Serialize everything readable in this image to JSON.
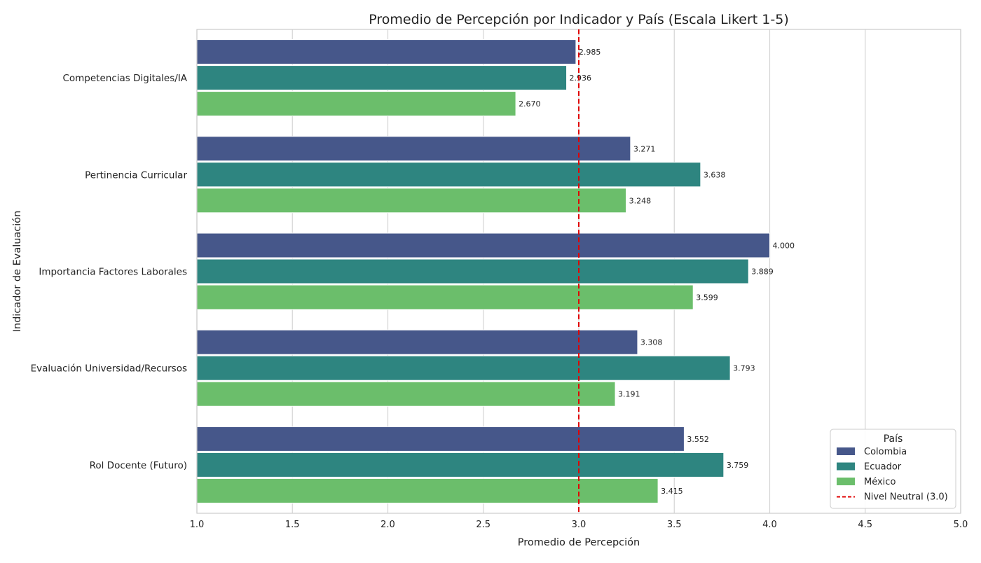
{
  "chart_data": {
    "type": "bar",
    "orientation": "horizontal",
    "title": "Promedio de Percepción por Indicador y País (Escala Likert 1-5)",
    "xlabel": "Promedio de Percepción",
    "ylabel": "Indicador de Evaluación",
    "xlim": [
      1.0,
      5.0
    ],
    "xticks": [
      "1.0",
      "1.5",
      "2.0",
      "2.5",
      "3.0",
      "3.5",
      "4.0",
      "4.5",
      "5.0"
    ],
    "grid": "vertical",
    "categories": [
      "Competencias Digitales/IA",
      "Pertinencia Curricular",
      "Importancia Factores Laborales",
      "Evaluación Universidad/Recursos",
      "Rol Docente (Futuro)"
    ],
    "series": [
      {
        "name": "Colombia",
        "color": "#46578a",
        "values": [
          2.985,
          3.271,
          4.0,
          3.308,
          3.552
        ],
        "labels": [
          "2.985",
          "3.271",
          "4.000",
          "3.308",
          "3.552"
        ]
      },
      {
        "name": "Ecuador",
        "color": "#2e8580",
        "values": [
          2.936,
          3.638,
          3.889,
          3.793,
          3.759
        ],
        "labels": [
          "2.936",
          "3.638",
          "3.889",
          "3.793",
          "3.759"
        ]
      },
      {
        "name": "México",
        "color": "#6bbe6b",
        "values": [
          2.67,
          3.248,
          3.599,
          3.191,
          3.415
        ],
        "labels": [
          "2.670",
          "3.248",
          "3.599",
          "3.191",
          "3.415"
        ]
      }
    ],
    "reference_line": {
      "value": 3.0,
      "label": "Nivel Neutral (3.0)",
      "color": "#e00000",
      "style": "dashed"
    },
    "legend": {
      "title": "País",
      "position": "bottom-right"
    }
  }
}
